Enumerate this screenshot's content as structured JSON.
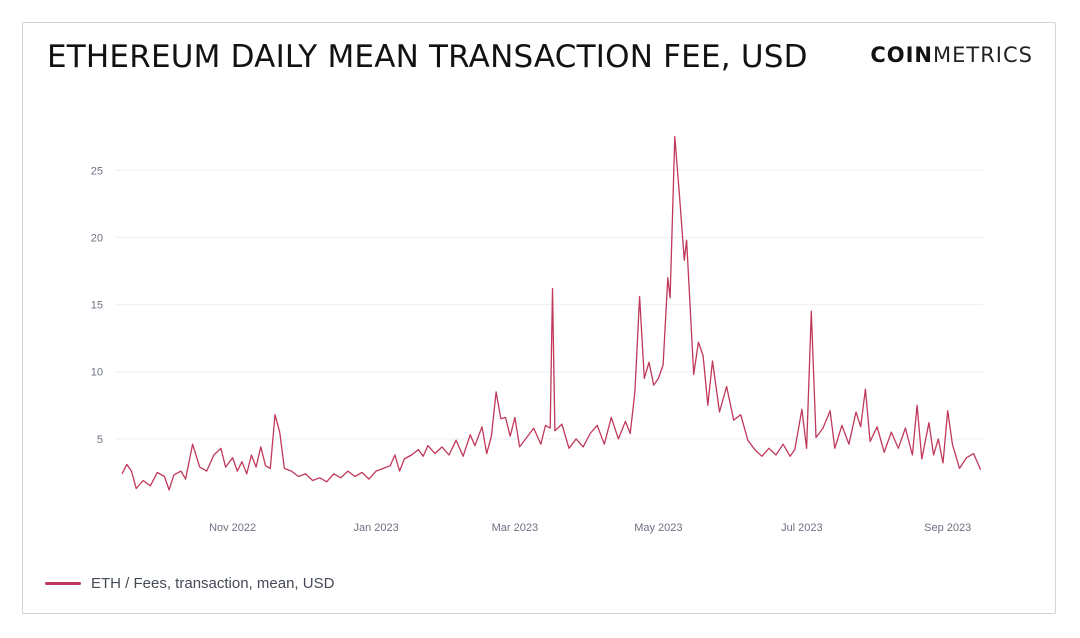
{
  "title": "ETHEREUM DAILY MEAN TRANSACTION FEE, USD",
  "logo": {
    "bold": "COIN",
    "light": "METRICS"
  },
  "colors": {
    "line": "#c0385a",
    "grid": "#eceef2",
    "tick": "#6b7280"
  },
  "legend": {
    "label": "ETH / Fees, transaction, mean, USD"
  },
  "chart_data": {
    "type": "line",
    "title": "ETHEREUM DAILY MEAN TRANSACTION FEE, USD",
    "xlabel": "",
    "ylabel": "",
    "ylim": [
      0,
      28
    ],
    "yticks": [
      5,
      10,
      15,
      20,
      25
    ],
    "grid": true,
    "legend_position": "bottom-left",
    "xticks": [
      {
        "label": "Nov 2022",
        "date": "2022-11-01"
      },
      {
        "label": "Jan 2023",
        "date": "2023-01-01"
      },
      {
        "label": "Mar 2023",
        "date": "2023-03-01"
      },
      {
        "label": "May 2023",
        "date": "2023-05-01"
      },
      {
        "label": "Jul 2023",
        "date": "2023-07-01"
      },
      {
        "label": "Sep 2023",
        "date": "2023-09-01"
      }
    ],
    "series": [
      {
        "name": "ETH / Fees, transaction, mean, USD",
        "points": [
          [
            "2022-09-15",
            2.4
          ],
          [
            "2022-09-17",
            3.1
          ],
          [
            "2022-09-19",
            2.6
          ],
          [
            "2022-09-21",
            1.3
          ],
          [
            "2022-09-24",
            1.9
          ],
          [
            "2022-09-27",
            1.5
          ],
          [
            "2022-09-30",
            2.5
          ],
          [
            "2022-10-03",
            2.2
          ],
          [
            "2022-10-05",
            1.2
          ],
          [
            "2022-10-07",
            2.3
          ],
          [
            "2022-10-10",
            2.6
          ],
          [
            "2022-10-12",
            2.0
          ],
          [
            "2022-10-15",
            4.6
          ],
          [
            "2022-10-18",
            2.9
          ],
          [
            "2022-10-21",
            2.6
          ],
          [
            "2022-10-24",
            3.8
          ],
          [
            "2022-10-27",
            4.3
          ],
          [
            "2022-10-29",
            2.9
          ],
          [
            "2022-11-01",
            3.6
          ],
          [
            "2022-11-03",
            2.6
          ],
          [
            "2022-11-05",
            3.3
          ],
          [
            "2022-11-07",
            2.4
          ],
          [
            "2022-11-09",
            3.8
          ],
          [
            "2022-11-11",
            2.9
          ],
          [
            "2022-11-13",
            4.4
          ],
          [
            "2022-11-15",
            3.0
          ],
          [
            "2022-11-17",
            2.8
          ],
          [
            "2022-11-19",
            6.8
          ],
          [
            "2022-11-21",
            5.5
          ],
          [
            "2022-11-23",
            2.8
          ],
          [
            "2022-11-26",
            2.6
          ],
          [
            "2022-11-29",
            2.2
          ],
          [
            "2022-12-02",
            2.4
          ],
          [
            "2022-12-05",
            1.9
          ],
          [
            "2022-12-08",
            2.1
          ],
          [
            "2022-12-11",
            1.8
          ],
          [
            "2022-12-14",
            2.4
          ],
          [
            "2022-12-17",
            2.1
          ],
          [
            "2022-12-20",
            2.6
          ],
          [
            "2022-12-23",
            2.2
          ],
          [
            "2022-12-26",
            2.5
          ],
          [
            "2022-12-29",
            2.0
          ],
          [
            "2023-01-01",
            2.6
          ],
          [
            "2023-01-04",
            2.8
          ],
          [
            "2023-01-07",
            3.0
          ],
          [
            "2023-01-09",
            3.8
          ],
          [
            "2023-01-11",
            2.6
          ],
          [
            "2023-01-13",
            3.5
          ],
          [
            "2023-01-16",
            3.8
          ],
          [
            "2023-01-19",
            4.2
          ],
          [
            "2023-01-21",
            3.7
          ],
          [
            "2023-01-23",
            4.5
          ],
          [
            "2023-01-26",
            3.9
          ],
          [
            "2023-01-29",
            4.4
          ],
          [
            "2023-02-01",
            3.8
          ],
          [
            "2023-02-04",
            4.9
          ],
          [
            "2023-02-07",
            3.7
          ],
          [
            "2023-02-10",
            5.3
          ],
          [
            "2023-02-12",
            4.5
          ],
          [
            "2023-02-15",
            5.9
          ],
          [
            "2023-02-17",
            3.9
          ],
          [
            "2023-02-19",
            5.2
          ],
          [
            "2023-02-21",
            8.5
          ],
          [
            "2023-02-23",
            6.5
          ],
          [
            "2023-02-25",
            6.6
          ],
          [
            "2023-02-27",
            5.2
          ],
          [
            "2023-03-01",
            6.6
          ],
          [
            "2023-03-03",
            4.4
          ],
          [
            "2023-03-06",
            5.1
          ],
          [
            "2023-03-09",
            5.8
          ],
          [
            "2023-03-12",
            4.6
          ],
          [
            "2023-03-14",
            6.0
          ],
          [
            "2023-03-16",
            5.8
          ],
          [
            "2023-03-17",
            16.2
          ],
          [
            "2023-03-18",
            5.6
          ],
          [
            "2023-03-21",
            6.1
          ],
          [
            "2023-03-24",
            4.3
          ],
          [
            "2023-03-27",
            5.0
          ],
          [
            "2023-03-30",
            4.4
          ],
          [
            "2023-04-02",
            5.4
          ],
          [
            "2023-04-05",
            6.0
          ],
          [
            "2023-04-08",
            4.6
          ],
          [
            "2023-04-11",
            6.6
          ],
          [
            "2023-04-14",
            5.0
          ],
          [
            "2023-04-17",
            6.3
          ],
          [
            "2023-04-19",
            5.4
          ],
          [
            "2023-04-21",
            8.5
          ],
          [
            "2023-04-23",
            15.6
          ],
          [
            "2023-04-25",
            9.5
          ],
          [
            "2023-04-27",
            10.7
          ],
          [
            "2023-04-29",
            9.0
          ],
          [
            "2023-05-01",
            9.5
          ],
          [
            "2023-05-03",
            10.5
          ],
          [
            "2023-05-05",
            17.0
          ],
          [
            "2023-05-06",
            15.5
          ],
          [
            "2023-05-08",
            27.5
          ],
          [
            "2023-05-10",
            23.0
          ],
          [
            "2023-05-12",
            18.3
          ],
          [
            "2023-05-13",
            19.8
          ],
          [
            "2023-05-16",
            9.8
          ],
          [
            "2023-05-18",
            12.2
          ],
          [
            "2023-05-20",
            11.2
          ],
          [
            "2023-05-22",
            7.5
          ],
          [
            "2023-05-24",
            10.8
          ],
          [
            "2023-05-27",
            7.0
          ],
          [
            "2023-05-30",
            8.9
          ],
          [
            "2023-06-02",
            6.4
          ],
          [
            "2023-06-05",
            6.8
          ],
          [
            "2023-06-08",
            4.9
          ],
          [
            "2023-06-11",
            4.2
          ],
          [
            "2023-06-14",
            3.7
          ],
          [
            "2023-06-17",
            4.3
          ],
          [
            "2023-06-20",
            3.8
          ],
          [
            "2023-06-23",
            4.6
          ],
          [
            "2023-06-26",
            3.7
          ],
          [
            "2023-06-28",
            4.2
          ],
          [
            "2023-07-01",
            7.2
          ],
          [
            "2023-07-03",
            4.3
          ],
          [
            "2023-07-05",
            14.5
          ],
          [
            "2023-07-07",
            5.1
          ],
          [
            "2023-07-10",
            5.8
          ],
          [
            "2023-07-13",
            7.1
          ],
          [
            "2023-07-15",
            4.3
          ],
          [
            "2023-07-18",
            6.0
          ],
          [
            "2023-07-21",
            4.6
          ],
          [
            "2023-07-24",
            7.0
          ],
          [
            "2023-07-26",
            5.9
          ],
          [
            "2023-07-28",
            8.7
          ],
          [
            "2023-07-30",
            4.8
          ],
          [
            "2023-08-02",
            5.9
          ],
          [
            "2023-08-05",
            4.0
          ],
          [
            "2023-08-08",
            5.5
          ],
          [
            "2023-08-11",
            4.3
          ],
          [
            "2023-08-14",
            5.8
          ],
          [
            "2023-08-17",
            3.8
          ],
          [
            "2023-08-19",
            7.5
          ],
          [
            "2023-08-21",
            3.5
          ],
          [
            "2023-08-24",
            6.2
          ],
          [
            "2023-08-26",
            3.8
          ],
          [
            "2023-08-28",
            5.0
          ],
          [
            "2023-08-30",
            3.2
          ],
          [
            "2023-09-01",
            7.1
          ],
          [
            "2023-09-03",
            4.6
          ],
          [
            "2023-09-06",
            2.8
          ],
          [
            "2023-09-09",
            3.6
          ],
          [
            "2023-09-12",
            3.9
          ],
          [
            "2023-09-14",
            3.1
          ],
          [
            "2023-09-15",
            2.7
          ]
        ]
      }
    ]
  }
}
